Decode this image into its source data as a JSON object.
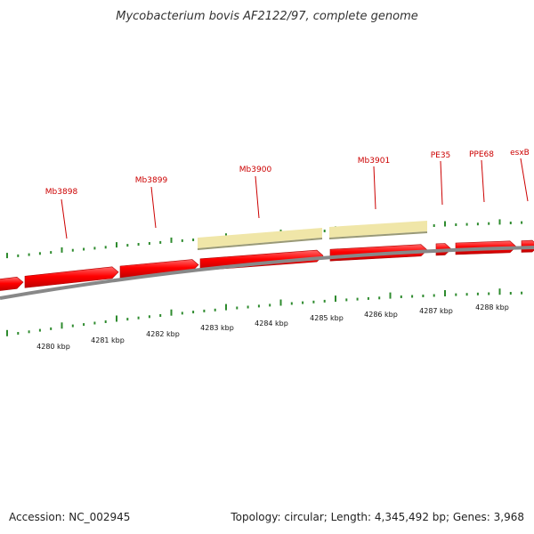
{
  "title": "Mycobacterium bovis AF2122/97, complete genome",
  "footer": {
    "accession": "Accession: NC_002945",
    "summary": "Topology: circular; Length: 4,345,492 bp; Genes: 3,968"
  },
  "colors": {
    "gene": "#ff0000",
    "gene_label": "#cc0000",
    "highlight": "#f0e6a8",
    "tick": "#2e8b2e",
    "backbone": "#888888"
  },
  "scale": {
    "unit": "kbp",
    "tick_labels": [
      "4280 kbp",
      "4281 kbp",
      "4282 kbp",
      "4283 kbp",
      "4284 kbp",
      "4285 kbp",
      "4286 kbp",
      "4287 kbp",
      "4288 kbp"
    ]
  },
  "genes": [
    {
      "name": "Mb3898"
    },
    {
      "name": "Mb3899"
    },
    {
      "name": "Mb3900"
    },
    {
      "name": "Mb3901"
    },
    {
      "name": "PE35"
    },
    {
      "name": "PPE68"
    },
    {
      "name": "esxB"
    }
  ]
}
